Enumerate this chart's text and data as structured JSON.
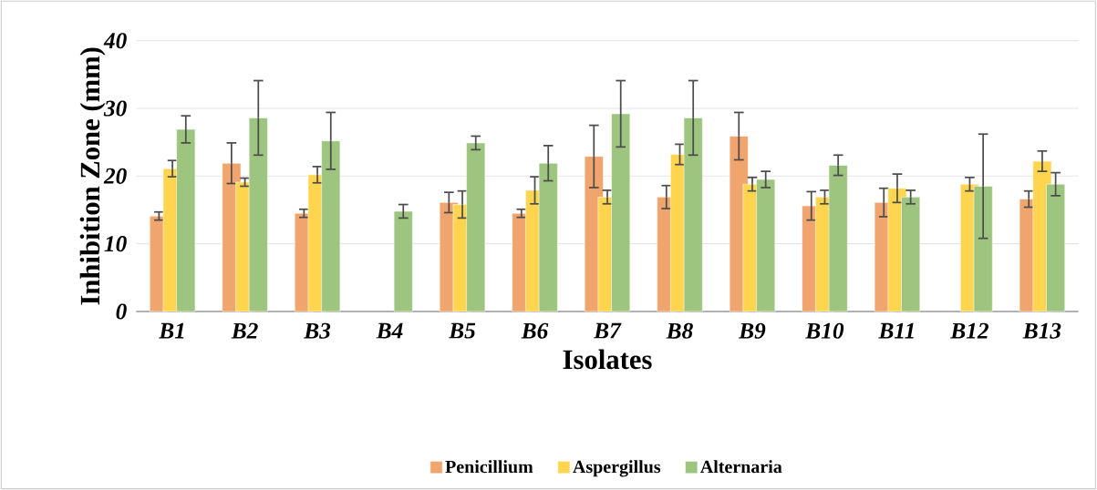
{
  "chart_data": {
    "type": "bar",
    "xlabel": "Isolates",
    "ylabel": "Inhibition Zone (mm)",
    "categories": [
      "B1",
      "B2",
      "B3",
      "B4",
      "B5",
      "B6",
      "B7",
      "B8",
      "B9",
      "B10",
      "B11",
      "B12",
      "B13"
    ],
    "series": [
      {
        "name": "Penicillium",
        "color": "#f0a46e",
        "values": [
          14.1,
          21.9,
          14.5,
          null,
          16.1,
          14.5,
          22.9,
          16.9,
          25.9,
          15.6,
          16.1,
          null,
          16.6
        ],
        "errors": [
          0.6,
          3.0,
          0.6,
          null,
          1.5,
          0.6,
          4.6,
          1.7,
          3.5,
          2.1,
          2.1,
          null,
          1.2
        ]
      },
      {
        "name": "Aspergillus",
        "color": "#ffd54f",
        "values": [
          21.1,
          19.1,
          20.2,
          null,
          15.8,
          17.9,
          16.9,
          23.2,
          18.8,
          16.9,
          18.2,
          18.8,
          22.2
        ],
        "errors": [
          1.2,
          0.6,
          1.2,
          null,
          2.0,
          2.0,
          1.0,
          1.5,
          1.0,
          1.0,
          2.1,
          1.0,
          1.5
        ]
      },
      {
        "name": "Alternaria",
        "color": "#9dc57f",
        "values": [
          26.9,
          28.6,
          25.2,
          14.8,
          24.9,
          21.9,
          29.2,
          28.6,
          19.5,
          21.6,
          16.9,
          18.5,
          18.8
        ],
        "errors": [
          2.0,
          5.5,
          4.2,
          1.0,
          1.0,
          2.6,
          4.9,
          5.5,
          1.2,
          1.5,
          1.0,
          7.7,
          1.7
        ]
      }
    ],
    "ylim": [
      0,
      40
    ],
    "yticks": [
      0,
      10,
      20,
      30,
      40
    ],
    "grid": "y",
    "legend": "bottom"
  }
}
